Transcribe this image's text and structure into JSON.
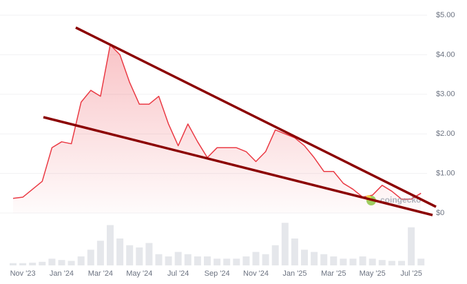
{
  "chart_data": {
    "type": "line",
    "categories": [
      null,
      "Nov '23",
      null,
      null,
      null,
      "Jan '24",
      null,
      null,
      null,
      "Mar '24",
      null,
      null,
      null,
      "May '24",
      null,
      null,
      null,
      "Jul '24",
      null,
      null,
      null,
      "Sep '24",
      null,
      null,
      null,
      "Nov '24",
      null,
      null,
      null,
      "Jan '25",
      null,
      null,
      null,
      "Mar '25",
      null,
      null,
      null,
      "May '25",
      null,
      null,
      null,
      "Jul '25",
      null
    ],
    "series": [
      {
        "color": "#ea3943",
        "values": [
          0.37,
          0.4,
          0.6,
          0.8,
          1.65,
          1.8,
          1.75,
          2.8,
          3.1,
          2.95,
          4.25,
          4.0,
          3.3,
          2.75,
          2.75,
          2.95,
          2.25,
          1.7,
          2.25,
          1.8,
          1.4,
          1.65,
          1.65,
          1.65,
          1.55,
          1.3,
          1.55,
          2.1,
          2.0,
          1.9,
          1.7,
          1.4,
          1.05,
          1.05,
          0.75,
          0.6,
          0.4,
          0.45,
          0.7,
          0.55,
          0.35,
          0.35,
          0.5
        ]
      }
    ],
    "ylim": [
      0,
      5
    ],
    "yticks": [
      {
        "value": 0,
        "label": "$0"
      },
      {
        "value": 1,
        "label": "$1.00"
      },
      {
        "value": 2,
        "label": "$2.00"
      },
      {
        "value": 3,
        "label": "$3.00"
      },
      {
        "value": 4,
        "label": "$4.00"
      },
      {
        "value": 5,
        "label": "$5.00"
      }
    ],
    "grid": true,
    "volume": {
      "color": "#e5e7eb",
      "ylim": [
        0,
        100
      ],
      "values": [
        5,
        5,
        6,
        8,
        15,
        12,
        10,
        20,
        35,
        55,
        90,
        60,
        45,
        40,
        50,
        25,
        20,
        30,
        25,
        20,
        20,
        15,
        15,
        15,
        20,
        30,
        25,
        45,
        95,
        60,
        35,
        30,
        25,
        20,
        15,
        15,
        20,
        15,
        12,
        10,
        10,
        85,
        15
      ]
    },
    "watermark": "coingecko"
  }
}
